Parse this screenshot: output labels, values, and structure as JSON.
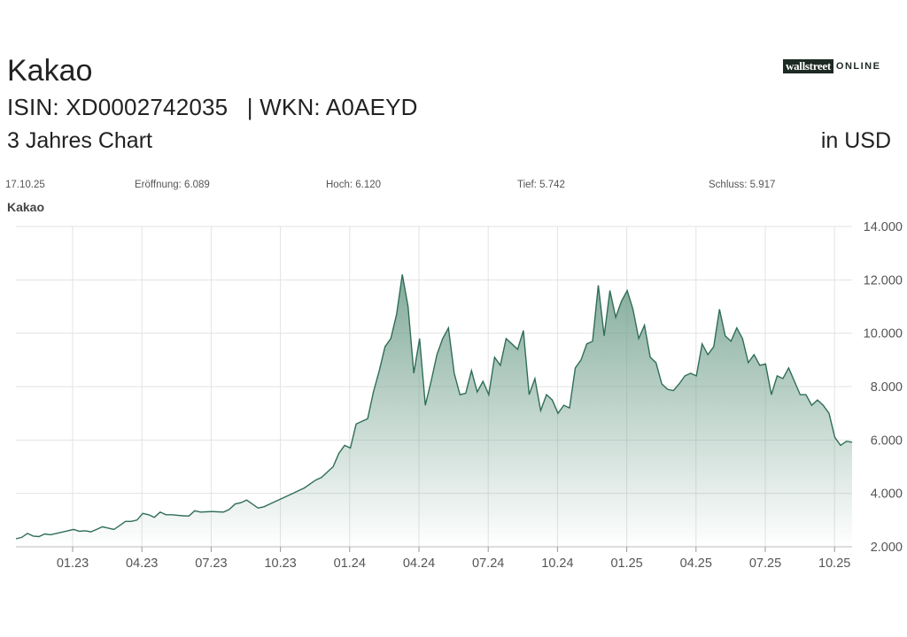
{
  "header": {
    "title": "Kakao",
    "isin": "ISIN: XD0002742035",
    "wkn": "| WKN: A0AEYD",
    "subtitle": "3 Jahres Chart",
    "currency": "in USD"
  },
  "logo": {
    "brand": "wallstreet",
    "suffix": "ONLINE"
  },
  "stats": {
    "date": "17.10.25",
    "open": "Eröffnung: 6.089",
    "high": "Hoch: 6.120",
    "low": "Tief: 5.742",
    "close": "Schluss: 5.917"
  },
  "colors": {
    "line": "#2f6e56",
    "fill_top": "#6f9e8b",
    "grid": "#e3e3e3"
  },
  "chart_data": {
    "type": "area",
    "series_label": "Kakao",
    "ylim": [
      2000,
      14000
    ],
    "y_ticks": [
      2000,
      4000,
      6000,
      8000,
      10000,
      12000,
      14000
    ],
    "y_tick_labels": [
      "2.000",
      "4.000",
      "6.000",
      "8.000",
      "10.000",
      "12.000",
      "14.000"
    ],
    "x_ticks": [
      "01.23",
      "04.23",
      "07.23",
      "10.23",
      "01.24",
      "04.24",
      "07.24",
      "10.24",
      "01.25",
      "04.25",
      "07.25",
      "10.25"
    ],
    "grid": true,
    "series": [
      {
        "values": [
          2300,
          2350,
          2500,
          2400,
          2380,
          2480,
          2450,
          2500,
          2550,
          2600,
          2650,
          2580,
          2600,
          2560,
          2650,
          2750,
          2700,
          2650,
          2800,
          2950,
          2950,
          3000,
          3250,
          3200,
          3100,
          3300,
          3200,
          3200,
          3180,
          3160,
          3150,
          3350,
          3300,
          3310,
          3320,
          3310,
          3300,
          3400,
          3600,
          3650,
          3750,
          3600,
          3450,
          3500,
          3600,
          3700,
          3800,
          3900,
          4000,
          4100,
          4200,
          4350,
          4500,
          4600,
          4800,
          5000,
          5500,
          5800,
          5700,
          6600,
          6700,
          6800,
          7800,
          8600,
          9500,
          9800,
          10700,
          12200,
          11000,
          8500,
          9800,
          7300,
          8200,
          9200,
          9800,
          10200,
          8500,
          7700,
          7750,
          8600,
          7800,
          8200,
          7700,
          9100,
          8800,
          9800,
          9600,
          9400,
          10100,
          7700,
          8300,
          7100,
          7700,
          7500,
          7000,
          7300,
          7200,
          8700,
          9000,
          9600,
          9700,
          11800,
          9900,
          11600,
          10600,
          11200,
          11600,
          10900,
          9800,
          10300,
          9100,
          8900,
          8100,
          7900,
          7850,
          8100,
          8400,
          8500,
          8400,
          9600,
          9200,
          9500,
          10900,
          9900,
          9700,
          10200,
          9800,
          8900,
          9200,
          8800,
          8850,
          7700,
          8400,
          8300,
          8700,
          8200,
          7700,
          7700,
          7300,
          7500,
          7300,
          7000,
          6100,
          5800,
          5950,
          5917
        ]
      }
    ]
  }
}
